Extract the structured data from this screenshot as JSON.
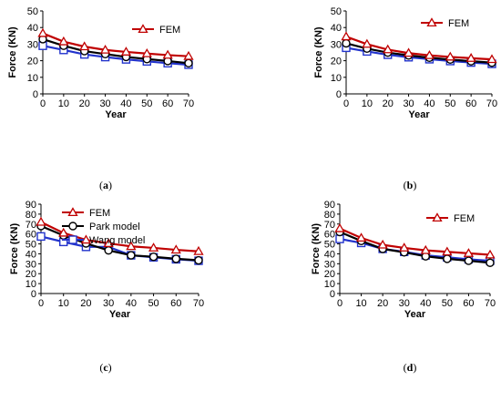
{
  "colors": {
    "fem": "#C00000",
    "park": "#000000",
    "wang": "#2233CC",
    "axis": "#000000"
  },
  "chart_data": [
    {
      "panel": "a",
      "type": "line",
      "caption": "(a)",
      "xlabel": "Year",
      "ylabel": "Force (KN)",
      "xlim": [
        0,
        70
      ],
      "ylim": [
        0,
        50
      ],
      "xticks": [
        0,
        10,
        20,
        30,
        40,
        50,
        60,
        70
      ],
      "yticks": [
        0,
        10,
        20,
        30,
        40,
        50
      ],
      "grid": false,
      "legend": "top-right",
      "x": [
        0,
        10,
        20,
        30,
        40,
        50,
        60,
        70
      ],
      "series": [
        {
          "name": "FEM",
          "marker": "triangle",
          "values": [
            36.5,
            31.5,
            28.5,
            26.5,
            25.3,
            24.3,
            23.4,
            22.7
          ]
        },
        {
          "marker": "circle",
          "values": [
            33,
            29,
            25.8,
            24,
            22.3,
            21,
            19.8,
            18.5
          ]
        },
        {
          "marker": "square",
          "values": [
            29,
            26.5,
            23.8,
            22.2,
            20.8,
            19.6,
            18.5,
            17.6
          ]
        }
      ]
    },
    {
      "panel": "b",
      "type": "line",
      "caption": "(b)",
      "xlabel": "Year",
      "ylabel": "Force (KN)",
      "xlim": [
        0,
        70
      ],
      "ylim": [
        0,
        50
      ],
      "xticks": [
        0,
        10,
        20,
        30,
        40,
        50,
        60,
        70
      ],
      "yticks": [
        0,
        10,
        20,
        30,
        40,
        50
      ],
      "grid": false,
      "legend": "top-right",
      "x": [
        0,
        10,
        20,
        30,
        40,
        50,
        60,
        70
      ],
      "series": [
        {
          "name": "FEM",
          "marker": "triangle",
          "values": [
            34.5,
            30,
            26.7,
            24.6,
            23.2,
            22.3,
            21.5,
            20.8
          ]
        },
        {
          "marker": "circle",
          "values": [
            30.5,
            27.3,
            24.9,
            23.2,
            21.8,
            20.7,
            19.7,
            18.8
          ]
        },
        {
          "marker": "square",
          "values": [
            27.8,
            25.6,
            23.6,
            22.1,
            20.9,
            19.8,
            18.9,
            18.1
          ]
        }
      ]
    },
    {
      "panel": "c",
      "type": "line",
      "caption": "(c)",
      "xlabel": "Year",
      "ylabel": "Force (KN)",
      "xlim": [
        0,
        70
      ],
      "ylim": [
        0,
        90
      ],
      "xticks": [
        0,
        10,
        20,
        30,
        40,
        50,
        60,
        70
      ],
      "yticks": [
        0,
        10,
        20,
        30,
        40,
        50,
        60,
        70,
        80,
        90
      ],
      "grid": false,
      "legend": "top-right",
      "x": [
        0,
        10,
        20,
        30,
        40,
        50,
        60,
        70
      ],
      "series": [
        {
          "name": "FEM",
          "marker": "triangle",
          "values": [
            72,
            61,
            54,
            50.5,
            47.5,
            46,
            44,
            42.5
          ]
        },
        {
          "name": "Park model",
          "marker": "circle",
          "values": [
            68,
            58.5,
            50.5,
            43.5,
            38.5,
            37,
            35,
            33.5
          ]
        },
        {
          "name": "Wang model",
          "marker": "square",
          "values": [
            57.5,
            52,
            47,
            47,
            38.5,
            36.5,
            34.5,
            33
          ]
        }
      ]
    },
    {
      "panel": "d",
      "type": "line",
      "caption": "(d)",
      "xlabel": "Year",
      "ylabel": "Force (KN)",
      "xlim": [
        0,
        70
      ],
      "ylim": [
        0,
        90
      ],
      "xticks": [
        0,
        10,
        20,
        30,
        40,
        50,
        60,
        70
      ],
      "yticks": [
        0,
        10,
        20,
        30,
        40,
        50,
        60,
        70,
        80,
        90
      ],
      "grid": false,
      "legend": "top-right",
      "x": [
        0,
        10,
        20,
        30,
        40,
        50,
        60,
        70
      ],
      "series": [
        {
          "name": "FEM",
          "marker": "triangle",
          "values": [
            65.5,
            56,
            49,
            46,
            43.5,
            42,
            40.5,
            39
          ]
        },
        {
          "marker": "circle",
          "values": [
            62,
            53,
            45,
            41.5,
            37.5,
            35,
            33,
            31
          ]
        },
        {
          "marker": "square",
          "values": [
            55,
            51,
            45,
            42,
            38.5,
            36.5,
            34.5,
            33
          ]
        }
      ]
    }
  ]
}
